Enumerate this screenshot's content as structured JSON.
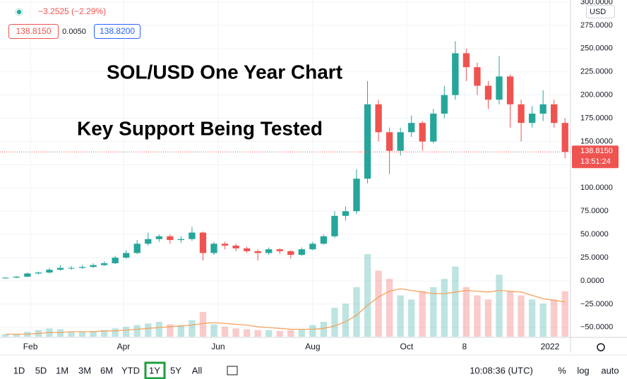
{
  "header": {
    "change": "−3.2525 (−2.29%)",
    "bid": "138.8150",
    "spread": "0.0050",
    "ask": "138.8200",
    "currency": "USD"
  },
  "chart_data": {
    "type": "candlestick",
    "title": "SOL/USD One Year Chart",
    "subtitle": "Key Support Being Tested",
    "up_color": "#26a69a",
    "down_color": "#ef5350",
    "volume_ma_color": "#f5a35c",
    "open": [
      3,
      3.5,
      4.5,
      8,
      9,
      12,
      14,
      14,
      15,
      17,
      19,
      25,
      30,
      40,
      45,
      48,
      44,
      45,
      52,
      30,
      40,
      38,
      35,
      32,
      30,
      34,
      32,
      28,
      34,
      40,
      48,
      70,
      75,
      110,
      190,
      160,
      140,
      160,
      170,
      150,
      180,
      200,
      245,
      230,
      210,
      195,
      220,
      190,
      170,
      180,
      190,
      170
    ],
    "high": [
      4,
      5,
      9,
      10,
      14,
      17,
      16,
      17,
      19,
      21,
      27,
      33,
      44,
      52,
      50,
      50,
      48,
      58,
      53,
      42,
      42,
      40,
      37,
      34,
      36,
      35,
      33,
      36,
      42,
      50,
      75,
      80,
      120,
      215,
      195,
      165,
      165,
      178,
      172,
      185,
      210,
      258,
      250,
      235,
      215,
      242,
      222,
      195,
      188,
      205,
      195,
      175
    ],
    "low": [
      2.5,
      3,
      4,
      7,
      8,
      11,
      12,
      13,
      14,
      16,
      18,
      24,
      29,
      38,
      42,
      40,
      41,
      43,
      22,
      28,
      34,
      32,
      30,
      22,
      28,
      29,
      24,
      27,
      33,
      39,
      46,
      65,
      72,
      105,
      150,
      115,
      135,
      155,
      140,
      148,
      175,
      195,
      215,
      200,
      185,
      190,
      165,
      150,
      165,
      172,
      165,
      132
    ],
    "close": [
      3.5,
      4.5,
      8,
      9,
      12,
      14,
      14,
      15,
      17,
      19,
      25,
      30,
      40,
      45,
      48,
      44,
      45,
      52,
      30,
      40,
      38,
      35,
      32,
      30,
      34,
      32,
      28,
      34,
      40,
      48,
      70,
      75,
      110,
      190,
      160,
      140,
      160,
      170,
      150,
      180,
      200,
      245,
      230,
      210,
      195,
      220,
      190,
      170,
      180,
      190,
      170,
      138.815
    ],
    "volume": [
      3,
      3,
      6,
      8,
      10,
      9,
      6,
      6,
      7,
      8,
      10,
      12,
      14,
      16,
      18,
      15,
      14,
      20,
      30,
      15,
      12,
      10,
      9,
      8,
      8,
      7,
      8,
      9,
      14,
      18,
      35,
      40,
      60,
      100,
      80,
      70,
      50,
      45,
      55,
      60,
      70,
      85,
      60,
      50,
      45,
      75,
      55,
      50,
      45,
      40,
      45,
      55
    ],
    "volume_ma": [
      3,
      3,
      3,
      4,
      5,
      5,
      6,
      6,
      6,
      7,
      7,
      8,
      9,
      10,
      11,
      12,
      13,
      14,
      16,
      17,
      16,
      15,
      14,
      12,
      11,
      10,
      9,
      9,
      9,
      10,
      13,
      18,
      26,
      38,
      48,
      55,
      58,
      56,
      54,
      52,
      52,
      54,
      56,
      55,
      54,
      56,
      55,
      54,
      50,
      46,
      44,
      42
    ],
    "volume_lim": [
      0,
      100
    ],
    "xlim": [
      -0.5,
      51.5
    ],
    "xticks": [
      {
        "value": 2.27,
        "label": "Feb"
      },
      {
        "value": 10.76,
        "label": "Apr"
      },
      {
        "value": 19.38,
        "label": "Jun"
      },
      {
        "value": 28.0,
        "label": "Aug"
      },
      {
        "value": 36.56,
        "label": "Oct"
      },
      {
        "value": 41.84,
        "label": "8"
      },
      {
        "value": 49.63,
        "label": "2022"
      }
    ],
    "ylim": [
      -60,
      300
    ],
    "yticks": [
      {
        "value": 300,
        "label": "300.0000"
      },
      {
        "value": 275,
        "label": "275.0000"
      },
      {
        "value": 250,
        "label": "250.0000"
      },
      {
        "value": 225,
        "label": "225.0000"
      },
      {
        "value": 200,
        "label": "200.0000"
      },
      {
        "value": 175,
        "label": "175.0000"
      },
      {
        "value": 150,
        "label": "150.0000"
      },
      {
        "value": 125,
        "label": "125.0000"
      },
      {
        "value": 100,
        "label": "100.0000"
      },
      {
        "value": 75,
        "label": "75.0000"
      },
      {
        "value": 50,
        "label": "50.0000"
      },
      {
        "value": 25,
        "label": "25.0000"
      },
      {
        "value": 0,
        "label": "0.0000"
      },
      {
        "value": -25,
        "label": "−25.0000"
      },
      {
        "value": -50,
        "label": "−50.0000"
      }
    ],
    "grid": true,
    "last_price": {
      "value": 138.815,
      "label": "138.8150"
    },
    "countdown": "13:51:24"
  },
  "toolbar": {
    "ranges": [
      "1D",
      "5D",
      "1M",
      "3M",
      "6M",
      "YTD",
      "1Y",
      "5Y",
      "All"
    ],
    "active": 6,
    "time": "10:08:36 (UTC)",
    "options": [
      "%",
      "log",
      "auto"
    ]
  }
}
